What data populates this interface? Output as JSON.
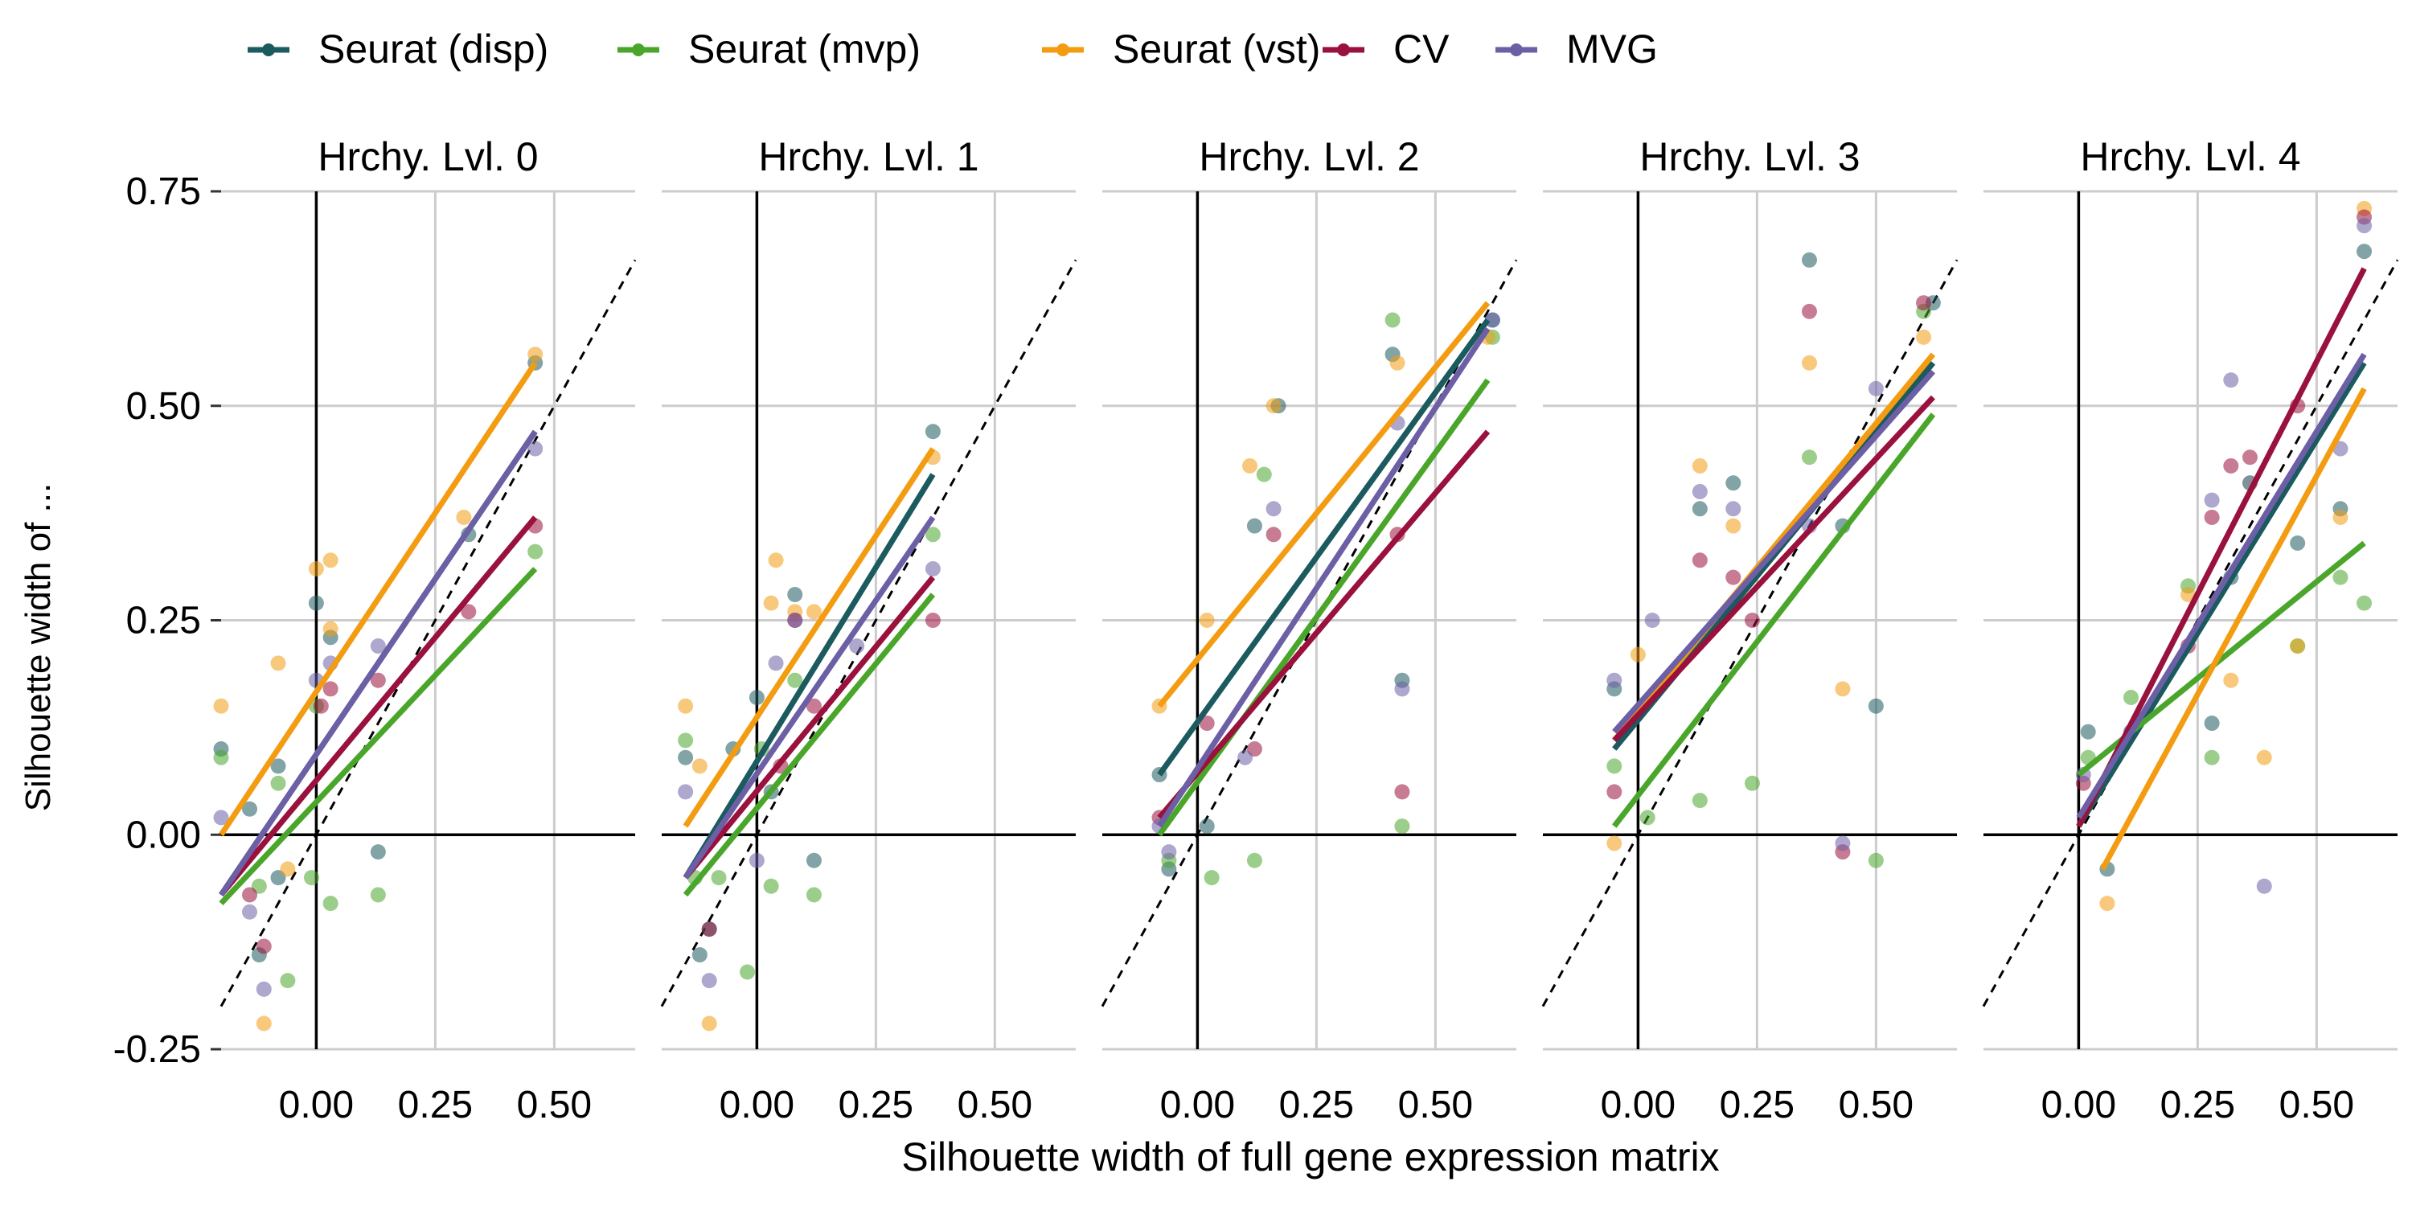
{
  "chart_data": {
    "type": "scatter",
    "xlabel": "Silhouette width of full gene expression matrix",
    "ylabel": "Silhouette width of ...",
    "xlim": [
      -0.2,
      0.67
    ],
    "ylim": [
      -0.25,
      0.75
    ],
    "x_ticks": [
      0.0,
      0.25,
      0.5
    ],
    "x_tick_labels": [
      "0.00",
      "0.25",
      "0.50"
    ],
    "y_ticks": [
      -0.25,
      0.0,
      0.25,
      0.5,
      0.75
    ],
    "y_tick_labels": [
      "-0.25",
      "0.00",
      "0.25",
      "0.50",
      "0.75"
    ],
    "grid": true,
    "legend_position": "top",
    "reference_line": "dashed identity line (y = x)",
    "series": [
      {
        "name": "Seurat (disp)",
        "color": "#1b5a5e"
      },
      {
        "name": "Seurat (mvp)",
        "color": "#4aa62b"
      },
      {
        "name": "Seurat (vst)",
        "color": "#f39c12"
      },
      {
        "name": "CV",
        "color": "#99113c"
      },
      {
        "name": "MVG",
        "color": "#6c5fa5"
      }
    ],
    "panels": [
      {
        "title": "Hrchy. Lvl. 0",
        "fit_lines": [
          {
            "series": "Seurat (disp)",
            "x": [
              -0.2,
              0.46
            ],
            "y": [
              -0.07,
              0.47
            ]
          },
          {
            "series": "Seurat (mvp)",
            "x": [
              -0.2,
              0.46
            ],
            "y": [
              -0.08,
              0.31
            ]
          },
          {
            "series": "Seurat (vst)",
            "x": [
              -0.2,
              0.46
            ],
            "y": [
              0.0,
              0.55
            ]
          },
          {
            "series": "CV",
            "x": [
              -0.2,
              0.46
            ],
            "y": [
              -0.07,
              0.37
            ]
          },
          {
            "series": "MVG",
            "x": [
              -0.2,
              0.46
            ],
            "y": [
              -0.07,
              0.47
            ]
          }
        ],
        "points": [
          {
            "series": "Seurat (disp)",
            "x": [
              -0.2,
              -0.14,
              -0.08,
              -0.12,
              0.0,
              0.03,
              0.13,
              0.32,
              0.46,
              -0.08
            ],
            "y": [
              0.1,
              0.03,
              0.08,
              -0.14,
              0.27,
              0.23,
              -0.02,
              0.35,
              0.55,
              -0.05
            ]
          },
          {
            "series": "Seurat (mvp)",
            "x": [
              -0.2,
              -0.12,
              -0.08,
              -0.06,
              0.0,
              0.03,
              0.13,
              0.46,
              -0.01
            ],
            "y": [
              0.09,
              -0.06,
              0.06,
              -0.17,
              0.15,
              -0.08,
              -0.07,
              0.33,
              -0.05
            ]
          },
          {
            "series": "Seurat (vst)",
            "x": [
              -0.2,
              -0.08,
              -0.11,
              0.0,
              0.03,
              0.03,
              0.31,
              0.46,
              -0.06
            ],
            "y": [
              0.15,
              0.2,
              -0.22,
              0.31,
              0.32,
              0.24,
              0.37,
              0.56,
              -0.04
            ]
          },
          {
            "series": "CV",
            "x": [
              -0.14,
              -0.11,
              0.01,
              0.03,
              0.13,
              0.32,
              0.46
            ],
            "y": [
              -0.07,
              -0.13,
              0.15,
              0.17,
              0.18,
              0.26,
              0.36
            ]
          },
          {
            "series": "MVG",
            "x": [
              -0.2,
              -0.14,
              -0.11,
              0.0,
              0.03,
              0.13,
              0.46
            ],
            "y": [
              0.02,
              -0.09,
              -0.18,
              0.18,
              0.2,
              0.22,
              0.45
            ]
          }
        ]
      },
      {
        "title": "Hrchy. Lvl. 1",
        "fit_lines": [
          {
            "series": "Seurat (disp)",
            "x": [
              -0.15,
              0.37
            ],
            "y": [
              -0.05,
              0.42
            ]
          },
          {
            "series": "Seurat (mvp)",
            "x": [
              -0.15,
              0.37
            ],
            "y": [
              -0.07,
              0.28
            ]
          },
          {
            "series": "Seurat (vst)",
            "x": [
              -0.15,
              0.37
            ],
            "y": [
              0.01,
              0.45
            ]
          },
          {
            "series": "CV",
            "x": [
              -0.15,
              0.37
            ],
            "y": [
              -0.05,
              0.3
            ]
          },
          {
            "series": "MVG",
            "x": [
              -0.15,
              0.37
            ],
            "y": [
              -0.05,
              0.37
            ]
          }
        ],
        "points": [
          {
            "series": "Seurat (disp)",
            "x": [
              -0.15,
              -0.12,
              -0.1,
              -0.05,
              0.0,
              0.08,
              0.12,
              0.37,
              0.03
            ],
            "y": [
              0.09,
              -0.14,
              -0.11,
              0.1,
              0.16,
              0.28,
              -0.03,
              0.47,
              0.05
            ]
          },
          {
            "series": "Seurat (mvp)",
            "x": [
              -0.15,
              -0.13,
              -0.08,
              0.01,
              0.03,
              0.08,
              0.12,
              0.37,
              -0.02
            ],
            "y": [
              0.11,
              -0.05,
              -0.05,
              0.1,
              -0.06,
              0.18,
              -0.07,
              0.35,
              -0.16
            ]
          },
          {
            "series": "Seurat (vst)",
            "x": [
              -0.15,
              -0.12,
              -0.1,
              0.03,
              0.04,
              0.08,
              0.12,
              0.37
            ],
            "y": [
              0.15,
              0.08,
              -0.22,
              0.27,
              0.32,
              0.26,
              0.26,
              0.44
            ]
          },
          {
            "series": "CV",
            "x": [
              -0.1,
              0.05,
              0.08,
              0.12,
              0.37
            ],
            "y": [
              -0.11,
              0.08,
              0.25,
              0.15,
              0.25
            ]
          },
          {
            "series": "MVG",
            "x": [
              -0.15,
              -0.1,
              0.0,
              0.04,
              0.08,
              0.21,
              0.37
            ],
            "y": [
              0.05,
              -0.17,
              -0.03,
              0.2,
              0.25,
              0.22,
              0.31
            ]
          }
        ]
      },
      {
        "title": "Hrchy. Lvl. 2",
        "fit_lines": [
          {
            "series": "Seurat (disp)",
            "x": [
              -0.08,
              0.61
            ],
            "y": [
              0.07,
              0.6
            ]
          },
          {
            "series": "Seurat (mvp)",
            "x": [
              -0.08,
              0.61
            ],
            "y": [
              0.0,
              0.53
            ]
          },
          {
            "series": "Seurat (vst)",
            "x": [
              -0.08,
              0.61
            ],
            "y": [
              0.15,
              0.62
            ]
          },
          {
            "series": "CV",
            "x": [
              -0.08,
              0.61
            ],
            "y": [
              0.02,
              0.47
            ]
          },
          {
            "series": "MVG",
            "x": [
              -0.08,
              0.61
            ],
            "y": [
              0.01,
              0.59
            ]
          }
        ],
        "points": [
          {
            "series": "Seurat (disp)",
            "x": [
              -0.08,
              -0.06,
              0.02,
              0.12,
              0.17,
              0.41,
              0.43,
              0.62
            ],
            "y": [
              0.07,
              -0.04,
              0.01,
              0.36,
              0.5,
              0.56,
              0.18,
              0.6
            ]
          },
          {
            "series": "Seurat (mvp)",
            "x": [
              -0.06,
              0.03,
              0.12,
              0.14,
              0.41,
              0.43,
              0.62
            ],
            "y": [
              -0.03,
              -0.05,
              -0.03,
              0.42,
              0.6,
              0.01,
              0.58
            ]
          },
          {
            "series": "Seurat (vst)",
            "x": [
              -0.08,
              0.02,
              0.11,
              0.16,
              0.42,
              0.61
            ],
            "y": [
              0.15,
              0.25,
              0.43,
              0.5,
              0.55,
              0.58
            ]
          },
          {
            "series": "CV",
            "x": [
              -0.08,
              0.02,
              0.12,
              0.16,
              0.42,
              0.43
            ],
            "y": [
              0.02,
              0.13,
              0.1,
              0.35,
              0.35,
              0.05
            ]
          },
          {
            "series": "MVG",
            "x": [
              -0.08,
              -0.06,
              0.1,
              0.16,
              0.42,
              0.43,
              0.62
            ],
            "y": [
              0.01,
              -0.02,
              0.09,
              0.38,
              0.48,
              0.17,
              0.6
            ]
          }
        ]
      },
      {
        "title": "Hrchy. Lvl. 3",
        "fit_lines": [
          {
            "series": "Seurat (disp)",
            "x": [
              -0.05,
              0.62
            ],
            "y": [
              0.1,
              0.55
            ]
          },
          {
            "series": "Seurat (mvp)",
            "x": [
              -0.05,
              0.62
            ],
            "y": [
              0.01,
              0.49
            ]
          },
          {
            "series": "Seurat (vst)",
            "x": [
              -0.05,
              0.62
            ],
            "y": [
              0.11,
              0.56
            ]
          },
          {
            "series": "CV",
            "x": [
              -0.05,
              0.62
            ],
            "y": [
              0.11,
              0.51
            ]
          },
          {
            "series": "MVG",
            "x": [
              -0.05,
              0.62
            ],
            "y": [
              0.12,
              0.54
            ]
          }
        ],
        "points": [
          {
            "series": "Seurat (disp)",
            "x": [
              -0.05,
              0.13,
              0.2,
              0.36,
              0.43,
              0.5,
              0.62
            ],
            "y": [
              0.17,
              0.38,
              0.41,
              0.67,
              0.36,
              0.15,
              0.62
            ]
          },
          {
            "series": "Seurat (mvp)",
            "x": [
              -0.05,
              0.02,
              0.13,
              0.24,
              0.36,
              0.5,
              0.6
            ],
            "y": [
              0.08,
              0.02,
              0.04,
              0.06,
              0.44,
              -0.03,
              0.61
            ]
          },
          {
            "series": "Seurat (vst)",
            "x": [
              -0.05,
              0.0,
              0.13,
              0.2,
              0.36,
              0.43,
              0.6
            ],
            "y": [
              -0.01,
              0.21,
              0.43,
              0.36,
              0.55,
              0.17,
              0.58
            ]
          },
          {
            "series": "CV",
            "x": [
              -0.05,
              0.13,
              0.2,
              0.24,
              0.36,
              0.43,
              0.6
            ],
            "y": [
              0.05,
              0.32,
              0.3,
              0.25,
              0.61,
              -0.02,
              0.62
            ]
          },
          {
            "series": "MVG",
            "x": [
              -0.05,
              0.03,
              0.13,
              0.2,
              0.36,
              0.43,
              0.5
            ],
            "y": [
              0.18,
              0.25,
              0.4,
              0.38,
              0.36,
              -0.01,
              0.52
            ]
          }
        ]
      },
      {
        "title": "Hrchy. Lvl. 4",
        "fit_lines": [
          {
            "series": "Seurat (disp)",
            "x": [
              0.0,
              0.6
            ],
            "y": [
              0.01,
              0.55
            ]
          },
          {
            "series": "Seurat (mvp)",
            "x": [
              0.0,
              0.6
            ],
            "y": [
              0.07,
              0.34
            ]
          },
          {
            "series": "Seurat (vst)",
            "x": [
              0.05,
              0.6
            ],
            "y": [
              -0.04,
              0.52
            ]
          },
          {
            "series": "CV",
            "x": [
              0.0,
              0.6
            ],
            "y": [
              0.01,
              0.66
            ]
          },
          {
            "series": "MVG",
            "x": [
              0.0,
              0.6
            ],
            "y": [
              0.02,
              0.56
            ]
          }
        ],
        "points": [
          {
            "series": "Seurat (disp)",
            "x": [
              0.02,
              0.06,
              0.11,
              0.28,
              0.32,
              0.46,
              0.55,
              0.6
            ],
            "y": [
              0.12,
              -0.04,
              0.12,
              0.13,
              0.3,
              0.34,
              0.38,
              0.68
            ]
          },
          {
            "series": "Seurat (mvp)",
            "x": [
              0.02,
              0.11,
              0.23,
              0.28,
              0.36,
              0.46,
              0.55,
              0.6
            ],
            "y": [
              0.09,
              0.16,
              0.29,
              0.09,
              0.41,
              0.22,
              0.3,
              0.27
            ]
          },
          {
            "series": "Seurat (vst)",
            "x": [
              0.06,
              0.23,
              0.32,
              0.39,
              0.46,
              0.55,
              0.6
            ],
            "y": [
              -0.08,
              0.28,
              0.18,
              0.09,
              0.22,
              0.37,
              0.73
            ]
          },
          {
            "series": "CV",
            "x": [
              0.01,
              0.23,
              0.28,
              0.32,
              0.36,
              0.46,
              0.6
            ],
            "y": [
              0.06,
              0.22,
              0.37,
              0.43,
              0.44,
              0.5,
              0.72
            ]
          },
          {
            "series": "MVG",
            "x": [
              0.01,
              0.28,
              0.32,
              0.36,
              0.39,
              0.55,
              0.6
            ],
            "y": [
              0.07,
              0.39,
              0.53,
              0.41,
              -0.06,
              0.45,
              0.71
            ]
          }
        ]
      }
    ]
  }
}
